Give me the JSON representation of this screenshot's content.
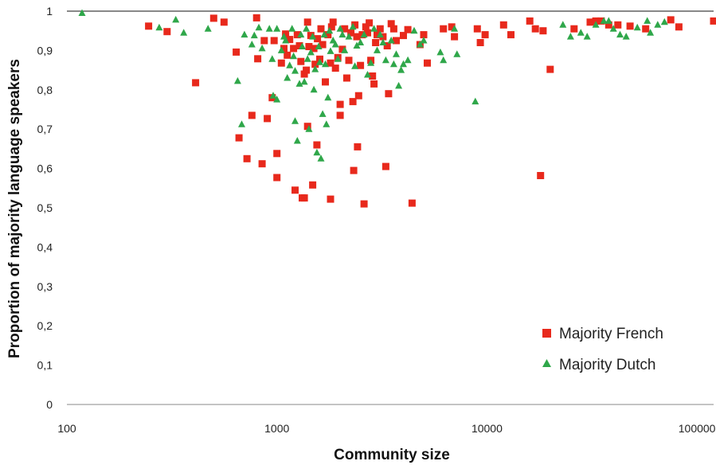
{
  "chart_data": {
    "type": "scatter",
    "xscale": "log",
    "xlim": [
      100,
      120000
    ],
    "ylim": [
      0,
      1
    ],
    "xlabel": "Community size",
    "ylabel": "Proportion of majority language speakers",
    "x_ticks": [
      100,
      1000,
      10000,
      100000
    ],
    "x_tick_labels": [
      "100",
      "1000",
      "10000",
      "100000"
    ],
    "y_ticks": [
      0,
      0.1,
      0.2,
      0.3,
      0.4,
      0.5,
      0.6,
      0.7,
      0.8,
      0.9,
      1
    ],
    "y_tick_labels": [
      "0",
      "0,1",
      "0,2",
      "0,3",
      "0,4",
      "0,5",
      "0,6",
      "0,7",
      "0,8",
      "0,9",
      "1"
    ],
    "grid": false,
    "legend_position": "bottom-right",
    "series": [
      {
        "name": "Majority French",
        "marker": "square",
        "color": "#e8291c",
        "points": [
          [
            245,
            0.962
          ],
          [
            300,
            0.948
          ],
          [
            410,
            0.818
          ],
          [
            500,
            0.982
          ],
          [
            560,
            0.972
          ],
          [
            640,
            0.896
          ],
          [
            660,
            0.678
          ],
          [
            720,
            0.625
          ],
          [
            760,
            0.735
          ],
          [
            800,
            0.983
          ],
          [
            810,
            0.879
          ],
          [
            850,
            0.612
          ],
          [
            870,
            0.925
          ],
          [
            900,
            0.727
          ],
          [
            950,
            0.78
          ],
          [
            970,
            0.925
          ],
          [
            1000,
            0.638
          ],
          [
            1000,
            0.577
          ],
          [
            1050,
            0.868
          ],
          [
            1080,
            0.905
          ],
          [
            1100,
            0.942
          ],
          [
            1120,
            0.888
          ],
          [
            1150,
            0.928
          ],
          [
            1200,
            0.905
          ],
          [
            1220,
            0.545
          ],
          [
            1250,
            0.94
          ],
          [
            1280,
            0.912
          ],
          [
            1300,
            0.872
          ],
          [
            1320,
            0.525
          ],
          [
            1350,
            0.525
          ],
          [
            1350,
            0.84
          ],
          [
            1380,
            0.85
          ],
          [
            1400,
            0.707
          ],
          [
            1400,
            0.972
          ],
          [
            1420,
            0.91
          ],
          [
            1450,
            0.938
          ],
          [
            1480,
            0.558
          ],
          [
            1500,
            0.905
          ],
          [
            1520,
            0.865
          ],
          [
            1550,
            0.66
          ],
          [
            1560,
            0.93
          ],
          [
            1600,
            0.878
          ],
          [
            1620,
            0.955
          ],
          [
            1650,
            0.915
          ],
          [
            1700,
            0.82
          ],
          [
            1750,
            0.94
          ],
          [
            1800,
            0.868
          ],
          [
            1800,
            0.522
          ],
          [
            1820,
            0.96
          ],
          [
            1850,
            0.972
          ],
          [
            1900,
            0.855
          ],
          [
            1950,
            0.882
          ],
          [
            2000,
            0.763
          ],
          [
            2000,
            0.735
          ],
          [
            2050,
            0.903
          ],
          [
            2100,
            0.955
          ],
          [
            2150,
            0.83
          ],
          [
            2200,
            0.875
          ],
          [
            2250,
            0.945
          ],
          [
            2300,
            0.77
          ],
          [
            2320,
            0.595
          ],
          [
            2350,
            0.965
          ],
          [
            2400,
            0.935
          ],
          [
            2420,
            0.655
          ],
          [
            2450,
            0.785
          ],
          [
            2500,
            0.862
          ],
          [
            2550,
            0.94
          ],
          [
            2600,
            0.51
          ],
          [
            2650,
            0.96
          ],
          [
            2700,
            0.945
          ],
          [
            2750,
            0.97
          ],
          [
            2800,
            0.875
          ],
          [
            2850,
            0.835
          ],
          [
            2900,
            0.815
          ],
          [
            2950,
            0.92
          ],
          [
            3000,
            0.94
          ],
          [
            3100,
            0.955
          ],
          [
            3200,
            0.935
          ],
          [
            3300,
            0.605
          ],
          [
            3350,
            0.912
          ],
          [
            3400,
            0.79
          ],
          [
            3500,
            0.968
          ],
          [
            3600,
            0.955
          ],
          [
            3700,
            0.925
          ],
          [
            4000,
            0.938
          ],
          [
            4200,
            0.953
          ],
          [
            4400,
            0.512
          ],
          [
            4800,
            0.915
          ],
          [
            5000,
            0.94
          ],
          [
            5200,
            0.868
          ],
          [
            6200,
            0.955
          ],
          [
            6800,
            0.96
          ],
          [
            7000,
            0.935
          ],
          [
            9000,
            0.955
          ],
          [
            9300,
            0.92
          ],
          [
            9800,
            0.94
          ],
          [
            12000,
            0.965
          ],
          [
            13000,
            0.94
          ],
          [
            16000,
            0.975
          ],
          [
            17000,
            0.955
          ],
          [
            18000,
            0.582
          ],
          [
            18500,
            0.95
          ],
          [
            20000,
            0.852
          ],
          [
            26000,
            0.955
          ],
          [
            31000,
            0.972
          ],
          [
            33000,
            0.975
          ],
          [
            35000,
            0.975
          ],
          [
            38000,
            0.965
          ],
          [
            42000,
            0.965
          ],
          [
            48000,
            0.962
          ],
          [
            57000,
            0.955
          ],
          [
            75000,
            0.978
          ],
          [
            82000,
            0.96
          ],
          [
            120000,
            0.975
          ]
        ]
      },
      {
        "name": "Majority Dutch",
        "marker": "triangle",
        "color": "#2fa74a",
        "points": [
          [
            118,
            0.995
          ],
          [
            275,
            0.958
          ],
          [
            330,
            0.978
          ],
          [
            360,
            0.945
          ],
          [
            470,
            0.955
          ],
          [
            650,
            0.822
          ],
          [
            680,
            0.712
          ],
          [
            700,
            0.94
          ],
          [
            760,
            0.915
          ],
          [
            780,
            0.938
          ],
          [
            820,
            0.958
          ],
          [
            850,
            0.905
          ],
          [
            920,
            0.955
          ],
          [
            950,
            0.878
          ],
          [
            960,
            0.785
          ],
          [
            1000,
            0.775
          ],
          [
            1000,
            0.955
          ],
          [
            1050,
            0.9
          ],
          [
            1080,
            0.935
          ],
          [
            1100,
            0.925
          ],
          [
            1120,
            0.83
          ],
          [
            1150,
            0.862
          ],
          [
            1180,
            0.955
          ],
          [
            1200,
            0.885
          ],
          [
            1220,
            0.848
          ],
          [
            1220,
            0.72
          ],
          [
            1250,
            0.67
          ],
          [
            1280,
            0.815
          ],
          [
            1300,
            0.94
          ],
          [
            1320,
            0.91
          ],
          [
            1350,
            0.82
          ],
          [
            1380,
            0.955
          ],
          [
            1400,
            0.878
          ],
          [
            1420,
            0.7
          ],
          [
            1450,
            0.895
          ],
          [
            1480,
            0.935
          ],
          [
            1500,
            0.8
          ],
          [
            1520,
            0.852
          ],
          [
            1550,
            0.64
          ],
          [
            1580,
            0.91
          ],
          [
            1600,
            0.87
          ],
          [
            1620,
            0.625
          ],
          [
            1650,
            0.738
          ],
          [
            1680,
            0.94
          ],
          [
            1700,
            0.865
          ],
          [
            1720,
            0.712
          ],
          [
            1750,
            0.78
          ],
          [
            1780,
            0.95
          ],
          [
            1800,
            0.898
          ],
          [
            1850,
            0.925
          ],
          [
            1900,
            0.915
          ],
          [
            1950,
            0.878
          ],
          [
            2000,
            0.955
          ],
          [
            2050,
            0.94
          ],
          [
            2100,
            0.9
          ],
          [
            2200,
            0.935
          ],
          [
            2300,
            0.96
          ],
          [
            2350,
            0.86
          ],
          [
            2400,
            0.912
          ],
          [
            2500,
            0.92
          ],
          [
            2600,
            0.94
          ],
          [
            2700,
            0.838
          ],
          [
            2800,
            0.868
          ],
          [
            2900,
            0.955
          ],
          [
            3000,
            0.9
          ],
          [
            3100,
            0.94
          ],
          [
            3200,
            0.92
          ],
          [
            3300,
            0.875
          ],
          [
            3500,
            0.925
          ],
          [
            3600,
            0.865
          ],
          [
            3700,
            0.89
          ],
          [
            3800,
            0.81
          ],
          [
            3900,
            0.85
          ],
          [
            4000,
            0.865
          ],
          [
            4200,
            0.875
          ],
          [
            4500,
            0.95
          ],
          [
            4800,
            0.915
          ],
          [
            5000,
            0.925
          ],
          [
            6000,
            0.895
          ],
          [
            6200,
            0.875
          ],
          [
            7000,
            0.955
          ],
          [
            7200,
            0.89
          ],
          [
            8800,
            0.77
          ],
          [
            23000,
            0.965
          ],
          [
            25000,
            0.935
          ],
          [
            28000,
            0.945
          ],
          [
            30000,
            0.935
          ],
          [
            33000,
            0.965
          ],
          [
            36000,
            0.975
          ],
          [
            38000,
            0.975
          ],
          [
            40000,
            0.955
          ],
          [
            43000,
            0.94
          ],
          [
            46000,
            0.935
          ],
          [
            52000,
            0.958
          ],
          [
            58000,
            0.975
          ],
          [
            60000,
            0.945
          ],
          [
            65000,
            0.965
          ],
          [
            70000,
            0.972
          ]
        ]
      }
    ]
  }
}
